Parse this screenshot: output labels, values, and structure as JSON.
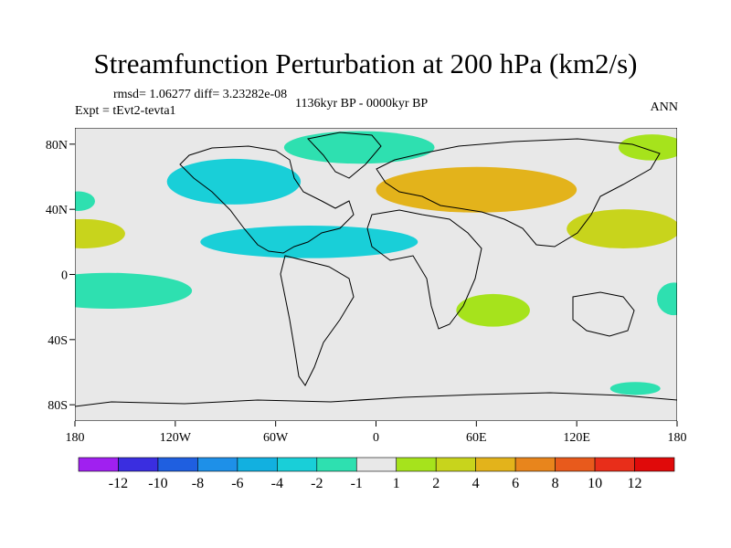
{
  "title": "Streamfunction Perturbation at 200 hPa (km2/s)",
  "stats_line": "rmsd= 1.06277 diff= 3.23282e-08",
  "expt_line": "Expt = tEvt2-tevta1",
  "period_line": "1136kyr BP - 0000kyr BP",
  "season": "ANN",
  "chart_data": {
    "type": "heatmap",
    "variable": "Streamfunction Perturbation",
    "level": "200 hPa",
    "units": "km2/s",
    "projection": "cylindrical equidistant",
    "xlim": [
      -180,
      180
    ],
    "ylim": [
      -90,
      90
    ],
    "x_ticks": [
      {
        "value": -180,
        "label": "180"
      },
      {
        "value": -120,
        "label": "120W"
      },
      {
        "value": -60,
        "label": "60W"
      },
      {
        "value": 0,
        "label": "0"
      },
      {
        "value": 60,
        "label": "60E"
      },
      {
        "value": 120,
        "label": "120E"
      },
      {
        "value": 180,
        "label": "180"
      }
    ],
    "y_ticks": [
      {
        "value": 80,
        "label": "80N"
      },
      {
        "value": 40,
        "label": "40N"
      },
      {
        "value": 0,
        "label": "0"
      },
      {
        "value": -40,
        "label": "40S"
      },
      {
        "value": -80,
        "label": "80S"
      }
    ],
    "background_value_range": [
      -1,
      1
    ],
    "colorbar": {
      "boundaries": [
        "-12",
        "-10",
        "-8",
        "-6",
        "-4",
        "-2",
        "-1",
        "1",
        "2",
        "4",
        "6",
        "8",
        "10",
        "12"
      ],
      "colors": [
        "#a020f0",
        "#3a2ee0",
        "#1f5fe0",
        "#1e90e8",
        "#12b0e0",
        "#19cfd8",
        "#2ee0b0",
        "#e8e8e8",
        "#a6e31c",
        "#c8d41c",
        "#e3b31b",
        "#e8851c",
        "#e85a1c",
        "#e82e1a",
        "#e00a0a"
      ]
    },
    "features": [
      {
        "name": "NW Pacific positive",
        "lon": -175,
        "lat": 25,
        "rx": 25,
        "ry": 9,
        "level": "2-4"
      },
      {
        "name": "North Pacific negative",
        "lon": -178,
        "lat": 45,
        "rx": 10,
        "ry": 6,
        "level": "-2--1"
      },
      {
        "name": "Canada negative",
        "lon": -85,
        "lat": 57,
        "rx": 40,
        "ry": 14,
        "level": "-4--2"
      },
      {
        "name": "Arctic negative",
        "lon": -10,
        "lat": 78,
        "rx": 45,
        "ry": 10,
        "level": "-2--1"
      },
      {
        "name": "Tropical Atlantic negative",
        "lon": -40,
        "lat": 20,
        "rx": 65,
        "ry": 10,
        "level": "-4--2"
      },
      {
        "name": "Eurasia positive",
        "lon": 60,
        "lat": 52,
        "rx": 60,
        "ry": 14,
        "level": "4-6"
      },
      {
        "name": "SE Pacific negative",
        "lon": -160,
        "lat": -10,
        "rx": 50,
        "ry": 11,
        "level": "-2--1"
      },
      {
        "name": "Indian Ocean positive",
        "lon": 70,
        "lat": -22,
        "rx": 22,
        "ry": 10,
        "level": "1-2"
      },
      {
        "name": "West Pacific positive",
        "lon": 148,
        "lat": 28,
        "rx": 34,
        "ry": 12,
        "level": "2-4"
      },
      {
        "name": "East Pacific negative",
        "lon": 178,
        "lat": -15,
        "rx": 10,
        "ry": 10,
        "level": "-2--1"
      },
      {
        "name": "Southern Ocean negative",
        "lon": 155,
        "lat": -70,
        "rx": 15,
        "ry": 4,
        "level": "-2--1"
      },
      {
        "name": "Siberia north positive",
        "lon": 165,
        "lat": 78,
        "rx": 20,
        "ry": 8,
        "level": "1-2"
      }
    ]
  }
}
